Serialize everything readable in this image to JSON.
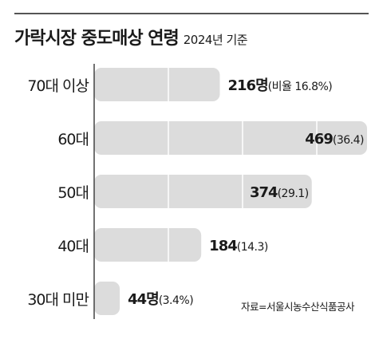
{
  "title": "가락시장 중도매상 연령",
  "subtitle": "2024년 기준",
  "source": "자료=서울시농수산식품공사",
  "colors": {
    "bar": "#dcdcdc",
    "axis": "#444444",
    "text": "#1a1a1a",
    "grid": "#ffffff",
    "rule": "#555555"
  },
  "chart_data": {
    "type": "bar",
    "orientation": "horizontal",
    "categories": [
      "70대 이상",
      "60대",
      "50대",
      "40대",
      "30대 미만"
    ],
    "values": [
      216,
      469,
      374,
      184,
      44
    ],
    "shares": [
      16.8,
      36.4,
      29.1,
      14.3,
      3.4
    ],
    "value_labels": [
      "216명",
      "469",
      "374",
      "184",
      "44명"
    ],
    "share_labels": [
      "(비율 16.8%)",
      "(36.4)",
      "(29.1)",
      "(14.3)",
      "(3.4%)"
    ],
    "xlim": [
      0,
      469
    ],
    "grid": true,
    "title": "가락시장 중도매상 연령",
    "xlabel": "",
    "ylabel": ""
  }
}
